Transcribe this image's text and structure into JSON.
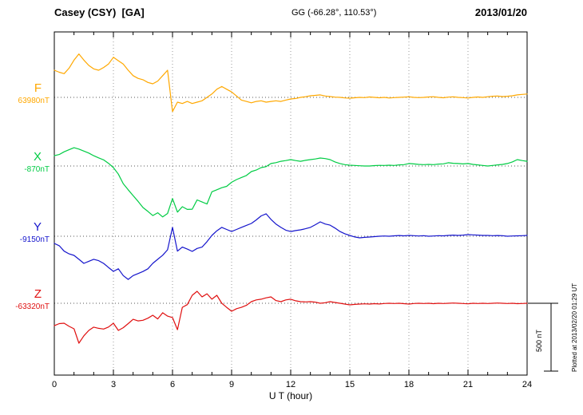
{
  "header": {
    "station": "Casey (CSY)  [GA]",
    "coords": "GG (-66.28°, 110.53°)",
    "date": "2013/01/20"
  },
  "axis": {
    "xlabel": "U T (hour)",
    "tick_labels": [
      "0",
      "3",
      "6",
      "9",
      "12",
      "15",
      "18",
      "21",
      "24"
    ]
  },
  "watermark": {
    "text": "Plotted at 2013/02/20 01:29 UT"
  },
  "chart_data": {
    "type": "line",
    "title": "Casey (CSY) [GA] magnetogram 2013/01/20",
    "xlabel": "U T (hour)",
    "x_range": [
      0,
      24
    ],
    "x_tick_step": 3,
    "x_step_hours": 0.25,
    "grid": "dotted",
    "scale_bar": {
      "label": "500 nT",
      "nT": 500
    },
    "series": [
      {
        "name": "F",
        "baseline_label": "63980nT",
        "baseline_nT": 63980,
        "color": "#FFA800",
        "offsets_nT": [
          200,
          185,
          175,
          215,
          275,
          320,
          275,
          235,
          210,
          200,
          220,
          245,
          295,
          270,
          245,
          200,
          160,
          140,
          130,
          110,
          100,
          120,
          160,
          200,
          -105,
          -35,
          -45,
          -30,
          -45,
          -35,
          -25,
          0,
          25,
          60,
          80,
          60,
          40,
          10,
          -20,
          -30,
          -40,
          -30,
          -25,
          -35,
          -30,
          -25,
          -30,
          -20,
          -12,
          -8,
          0,
          5,
          12,
          15,
          18,
          10,
          6,
          2,
          0,
          -4,
          -6,
          -3,
          0,
          -2,
          3,
          0,
          -3,
          0,
          -5,
          -2,
          0,
          2,
          4,
          0,
          -2,
          0,
          3,
          5,
          0,
          -3,
          2,
          4,
          0,
          -2,
          -5,
          0,
          3,
          0,
          5,
          8,
          10,
          6,
          8,
          12,
          18,
          22,
          25
        ]
      },
      {
        "name": "X",
        "baseline_label": "-870nT",
        "baseline_nT": -870,
        "color": "#00CC44",
        "offsets_nT": [
          76,
          85,
          105,
          120,
          135,
          125,
          110,
          95,
          76,
          60,
          45,
          20,
          -12,
          -60,
          -130,
          -175,
          -218,
          -260,
          -306,
          -335,
          -365,
          -345,
          -375,
          -350,
          -240,
          -340,
          -300,
          -320,
          -318,
          -250,
          -265,
          -280,
          -190,
          -175,
          -160,
          -150,
          -120,
          -100,
          -85,
          -70,
          -41,
          -30,
          -12,
          -5,
          18,
          25,
          35,
          40,
          47,
          40,
          35,
          42,
          47,
          52,
          59,
          55,
          47,
          30,
          18,
          10,
          6,
          4,
          2,
          0,
          0,
          3,
          5,
          4,
          6,
          4,
          8,
          10,
          18,
          15,
          12,
          10,
          12,
          10,
          14,
          16,
          24,
          20,
          18,
          15,
          18,
          12,
          8,
          4,
          0,
          4,
          8,
          12,
          18,
          30,
          47,
          40,
          35
        ]
      },
      {
        "name": "Y",
        "baseline_label": "-9150nT",
        "baseline_nT": -9150,
        "color": "#1515CC",
        "offsets_nT": [
          -53,
          -70,
          -110,
          -130,
          -141,
          -170,
          -200,
          -185,
          -170,
          -180,
          -200,
          -230,
          -259,
          -240,
          -290,
          -318,
          -290,
          -275,
          -260,
          -240,
          -200,
          -170,
          -140,
          -100,
          65,
          -110,
          -80,
          -95,
          -112,
          -90,
          -80,
          -40,
          6,
          40,
          65,
          50,
          35,
          50,
          65,
          80,
          94,
          120,
          150,
          165,
          124,
          90,
          65,
          45,
          35,
          42,
          47,
          55,
          65,
          85,
          106,
          90,
          82,
          60,
          35,
          18,
          6,
          -5,
          -12,
          -8,
          -6,
          -3,
          0,
          2,
          0,
          3,
          5,
          3,
          6,
          4,
          2,
          4,
          0,
          2,
          4,
          3,
          6,
          8,
          6,
          8,
          12,
          10,
          8,
          6,
          6,
          4,
          5,
          4,
          0,
          2,
          3,
          4,
          6
        ]
      },
      {
        "name": "Z",
        "baseline_label": "-63320nT",
        "baseline_nT": -63320,
        "color": "#E01010",
        "offsets_nT": [
          -165,
          -150,
          -147,
          -170,
          -188,
          -294,
          -240,
          -200,
          -176,
          -185,
          -190,
          -175,
          -147,
          -200,
          -180,
          -150,
          -118,
          -130,
          -125,
          -110,
          -88,
          -115,
          -70,
          -95,
          -105,
          -195,
          -30,
          -10,
          59,
          88,
          47,
          70,
          30,
          59,
          0,
          -30,
          -59,
          -40,
          -30,
          -15,
          12,
          25,
          30,
          40,
          47,
          20,
          12,
          25,
          30,
          18,
          12,
          10,
          12,
          8,
          0,
          4,
          12,
          6,
          0,
          -6,
          -12,
          -8,
          -6,
          -4,
          -6,
          -3,
          -5,
          -2,
          0,
          -2,
          0,
          -3,
          -6,
          -2,
          0,
          -2,
          0,
          -3,
          0,
          -2,
          0,
          2,
          0,
          -2,
          -4,
          0,
          -2,
          0,
          -2,
          0,
          2,
          0,
          -2,
          0,
          -3,
          -2,
          0
        ]
      }
    ]
  }
}
